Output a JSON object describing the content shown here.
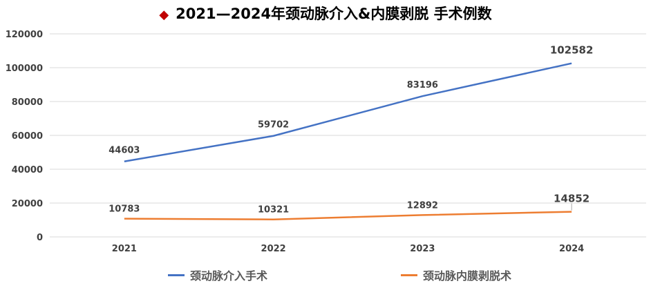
{
  "chart_data": {
    "type": "line",
    "title": "2021—2024年颈动脉介入&内膜剥脱 手术例数",
    "title_icon": "diamond-icon",
    "title_icon_color": "#c00000",
    "categories": [
      "2021",
      "2022",
      "2023",
      "2024"
    ],
    "yticks": [
      "0",
      "20000",
      "40000",
      "60000",
      "80000",
      "100000",
      "120000"
    ],
    "ylim": [
      0,
      120000
    ],
    "grid": true,
    "legend_position": "bottom",
    "series": [
      {
        "name": "颈动脉介入手术",
        "color": "#4472c4",
        "values": [
          44603,
          59702,
          83196,
          102582
        ],
        "labels": [
          "44603",
          "59702",
          "83196",
          "102582"
        ]
      },
      {
        "name": "颈动脉内膜剥脱术",
        "color": "#ed7d31",
        "values": [
          10783,
          10321,
          12892,
          14852
        ],
        "labels": [
          "10783",
          "10321",
          "12892",
          "14852"
        ]
      }
    ]
  }
}
